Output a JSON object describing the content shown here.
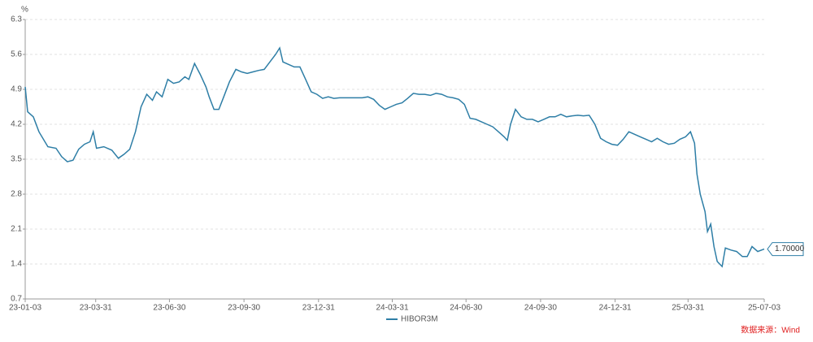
{
  "chart_data": {
    "type": "line",
    "y_unit": "%",
    "x": [
      "23-01-03",
      "23-01-06",
      "23-01-13",
      "23-01-20",
      "23-01-31",
      "23-02-10",
      "23-02-17",
      "23-02-24",
      "23-03-03",
      "23-03-10",
      "23-03-17",
      "23-03-24",
      "23-03-28",
      "23-04-01",
      "23-04-10",
      "23-04-20",
      "23-04-28",
      "23-05-05",
      "23-05-12",
      "23-05-19",
      "23-05-26",
      "23-06-02",
      "23-06-09",
      "23-06-14",
      "23-06-21",
      "23-06-28",
      "23-07-05",
      "23-07-12",
      "23-07-19",
      "23-07-24",
      "23-07-31",
      "23-08-07",
      "23-08-14",
      "23-08-18",
      "23-08-24",
      "23-08-30",
      "23-09-05",
      "23-09-12",
      "23-09-20",
      "23-09-27",
      "23-10-04",
      "23-10-11",
      "23-10-18",
      "23-10-25",
      "23-11-01",
      "23-11-08",
      "23-11-13",
      "23-11-17",
      "23-11-24",
      "23-12-01",
      "23-12-08",
      "23-12-15",
      "23-12-22",
      "23-12-29",
      "24-01-05",
      "24-01-12",
      "24-01-19",
      "24-01-26",
      "24-02-09",
      "24-02-23",
      "24-03-01",
      "24-03-08",
      "24-03-15",
      "24-03-22",
      "24-03-29",
      "24-04-05",
      "24-04-12",
      "24-04-19",
      "24-04-26",
      "24-05-03",
      "24-05-10",
      "24-05-17",
      "24-05-24",
      "24-05-31",
      "24-06-07",
      "24-06-14",
      "24-06-21",
      "24-06-28",
      "24-07-05",
      "24-07-12",
      "24-07-19",
      "24-07-26",
      "24-08-02",
      "24-08-09",
      "24-08-16",
      "24-08-20",
      "24-08-24",
      "24-08-30",
      "24-09-06",
      "24-09-13",
      "24-09-20",
      "24-09-27",
      "24-10-04",
      "24-10-11",
      "24-10-18",
      "24-10-25",
      "24-11-01",
      "24-11-08",
      "24-11-15",
      "24-11-22",
      "24-11-29",
      "24-12-06",
      "24-12-13",
      "24-12-20",
      "24-12-27",
      "25-01-03",
      "25-01-10",
      "25-01-17",
      "25-01-24",
      "25-01-31",
      "25-02-07",
      "25-02-14",
      "25-02-21",
      "25-02-28",
      "25-03-07",
      "25-03-14",
      "25-03-21",
      "25-03-28",
      "25-04-03",
      "25-04-08",
      "25-04-11",
      "25-04-15",
      "25-04-21",
      "25-04-24",
      "25-04-28",
      "25-05-02",
      "25-05-06",
      "25-05-12",
      "25-05-16",
      "25-05-23",
      "25-05-30",
      "25-06-06",
      "25-06-12",
      "25-06-18",
      "25-06-25",
      "25-07-03"
    ],
    "series": [
      {
        "name": "HIBOR3M",
        "color": "#2e7ea6",
        "values": [
          4.95,
          4.45,
          4.35,
          4.05,
          3.75,
          3.72,
          3.55,
          3.45,
          3.48,
          3.7,
          3.8,
          3.85,
          4.05,
          3.72,
          3.75,
          3.68,
          3.52,
          3.6,
          3.7,
          4.05,
          4.55,
          4.8,
          4.68,
          4.85,
          4.75,
          5.1,
          5.02,
          5.05,
          5.15,
          5.1,
          5.42,
          5.2,
          4.95,
          4.75,
          4.5,
          4.5,
          4.75,
          5.05,
          5.3,
          5.25,
          5.22,
          5.25,
          5.28,
          5.3,
          5.45,
          5.6,
          5.73,
          5.45,
          5.4,
          5.35,
          5.35,
          5.1,
          4.85,
          4.8,
          4.72,
          4.75,
          4.72,
          4.73,
          4.73,
          4.73,
          4.75,
          4.7,
          4.58,
          4.5,
          4.55,
          4.6,
          4.63,
          4.72,
          4.82,
          4.8,
          4.8,
          4.78,
          4.82,
          4.8,
          4.75,
          4.73,
          4.7,
          4.6,
          4.32,
          4.3,
          4.25,
          4.2,
          4.15,
          4.05,
          3.95,
          3.88,
          4.2,
          4.5,
          4.35,
          4.3,
          4.3,
          4.25,
          4.3,
          4.35,
          4.35,
          4.4,
          4.35,
          4.37,
          4.38,
          4.37,
          4.38,
          4.2,
          3.92,
          3.85,
          3.8,
          3.78,
          3.9,
          4.05,
          4.0,
          3.95,
          3.9,
          3.85,
          3.92,
          3.85,
          3.8,
          3.82,
          3.9,
          3.95,
          4.05,
          3.82,
          3.2,
          2.8,
          2.45,
          2.05,
          2.2,
          1.75,
          1.45,
          1.35,
          1.72,
          1.68,
          1.65,
          1.55,
          1.55,
          1.75,
          1.65,
          1.7
        ]
      }
    ],
    "last_value_label": "1.70000",
    "xlim": [
      "23-01-03",
      "25-07-03"
    ],
    "xticks": [
      "23-01-03",
      "23-03-31",
      "23-06-30",
      "23-09-30",
      "23-12-31",
      "24-03-31",
      "24-06-30",
      "24-09-30",
      "24-12-31",
      "25-03-31",
      "25-07-03"
    ],
    "ylim": [
      0.7,
      6.3
    ],
    "yticks": [
      0.7,
      1.4,
      2.1,
      2.8,
      3.5,
      4.2,
      4.9,
      5.6,
      6.3
    ],
    "grid": true,
    "source": "数据来源：Wind"
  }
}
